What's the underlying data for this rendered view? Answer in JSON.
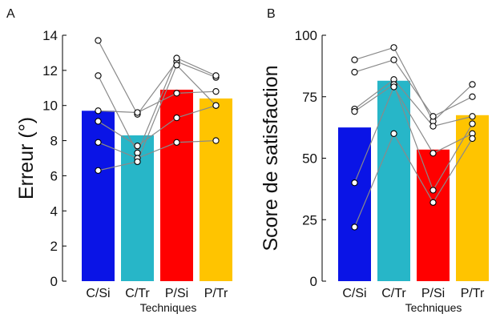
{
  "chart_data": [
    {
      "panel": "A",
      "type": "bar",
      "ylabel": "Erreur (°)",
      "xlabel": "Techniques",
      "categories": [
        "C/Si",
        "C/Tr",
        "P/Si",
        "P/Tr"
      ],
      "values": [
        9.7,
        8.3,
        10.9,
        10.4
      ],
      "colors": [
        "#0a14e6",
        "#27b6c8",
        "#ff0000",
        "#ffc400"
      ],
      "ylim": [
        0,
        14
      ],
      "yticks": [
        "0",
        "2",
        "4",
        "6",
        "8",
        "10",
        "12",
        "14"
      ],
      "subjects": [
        [
          13.7,
          9.5,
          12.5,
          11.6
        ],
        [
          11.7,
          7.3,
          12.7,
          11.7
        ],
        [
          9.7,
          9.6,
          10.7,
          10.8
        ],
        [
          9.1,
          7.7,
          9.3,
          10.0
        ],
        [
          7.9,
          7.0,
          7.9,
          8.0
        ],
        [
          6.3,
          6.8,
          12.3,
          10.0
        ]
      ]
    },
    {
      "panel": "B",
      "type": "bar",
      "ylabel": "Score de satisfaction",
      "xlabel": "Techniques",
      "categories": [
        "C/Si",
        "C/Tr",
        "P/Si",
        "P/Tr"
      ],
      "values": [
        62.5,
        81.5,
        53.5,
        67.5
      ],
      "colors": [
        "#0a14e6",
        "#27b6c8",
        "#ff0000",
        "#ffc400"
      ],
      "ylim": [
        0,
        100
      ],
      "yticks": [
        "0",
        "25",
        "50",
        "75",
        "100"
      ],
      "subjects": [
        [
          90,
          95,
          65,
          80
        ],
        [
          85,
          90,
          67,
          75
        ],
        [
          70,
          82,
          63,
          67
        ],
        [
          69,
          80,
          37,
          64
        ],
        [
          40,
          79,
          52,
          60
        ],
        [
          22,
          60,
          32,
          58
        ]
      ]
    }
  ]
}
